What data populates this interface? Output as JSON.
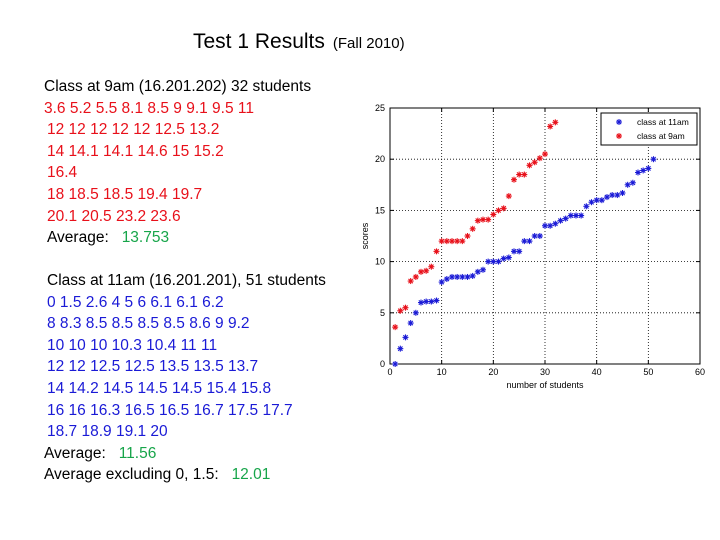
{
  "title": "Test 1 Results",
  "subtitle": "(Fall 2010)",
  "class9": {
    "heading": "Class at 9am (16.201.202)  32 students",
    "lines": [
      "3.6    5.2    5.5    8.1    8.5    9    9.1    9.5   11",
      "12    12    12    12    12    12.5    13.2",
      "14    14.1   14.1   14.6   15   15.2",
      "16.4",
      "18     18.5    18.5    19.4    19.7",
      "20.1   20.5    23.2    23.6"
    ],
    "average_label": "Average:",
    "average_value": "13.753"
  },
  "class11": {
    "heading": "Class at 11am (16.201.201), 51 students",
    "lines": [
      "0     1.5   2.6    4    5    6     6.1   6.1    6.2",
      "8     8.3   8.5   8.5     8.5     8.5    8.6    9    9.2",
      "10    10    10      10.3   10.4   11  11",
      "12    12    12.5   12.5   13.5   13.5   13.7",
      "14   14.2   14.5   14.5   14.5   15.4   15.8",
      "16     16     16.3   16.5   16.5   16.7   17.5   17.7",
      "18.7  18.9   19.1   20"
    ],
    "average_label": "Average:",
    "average_value": "11.56",
    "average_excl_label": "Average excluding 0, 1.5:",
    "average_excl_value": "12.01"
  },
  "chart_data": {
    "type": "scatter",
    "xlabel": "number of students",
    "ylabel": "scores",
    "xlim": [
      0,
      60
    ],
    "ylim": [
      0,
      25
    ],
    "xticks": [
      0,
      10,
      20,
      30,
      40,
      50,
      60
    ],
    "yticks": [
      0,
      5,
      10,
      15,
      20,
      25
    ],
    "grid": true,
    "legend_position": "top-right",
    "marker": "*",
    "series": [
      {
        "name": "class at 11am",
        "color": "#1a1ad6",
        "values": [
          0,
          1.5,
          2.6,
          4,
          5,
          6,
          6.1,
          6.1,
          6.2,
          8,
          8.3,
          8.5,
          8.5,
          8.5,
          8.5,
          8.6,
          9,
          9.2,
          10,
          10,
          10,
          10.3,
          10.4,
          11,
          11,
          12,
          12,
          12.5,
          12.5,
          13.5,
          13.5,
          13.7,
          14,
          14.2,
          14.5,
          14.5,
          14.5,
          15.4,
          15.8,
          16,
          16,
          16.3,
          16.5,
          16.5,
          16.7,
          17.5,
          17.7,
          18.7,
          18.9,
          19.1,
          20
        ]
      },
      {
        "name": "class at 9am",
        "color": "#e8101a",
        "values": [
          3.6,
          5.2,
          5.5,
          8.1,
          8.5,
          9,
          9.1,
          9.5,
          11,
          12,
          12,
          12,
          12,
          12,
          12.5,
          13.2,
          14,
          14.1,
          14.1,
          14.6,
          15,
          15.2,
          16.4,
          18,
          18.5,
          18.5,
          19.4,
          19.7,
          20.1,
          20.5,
          23.2,
          23.6
        ]
      }
    ]
  }
}
